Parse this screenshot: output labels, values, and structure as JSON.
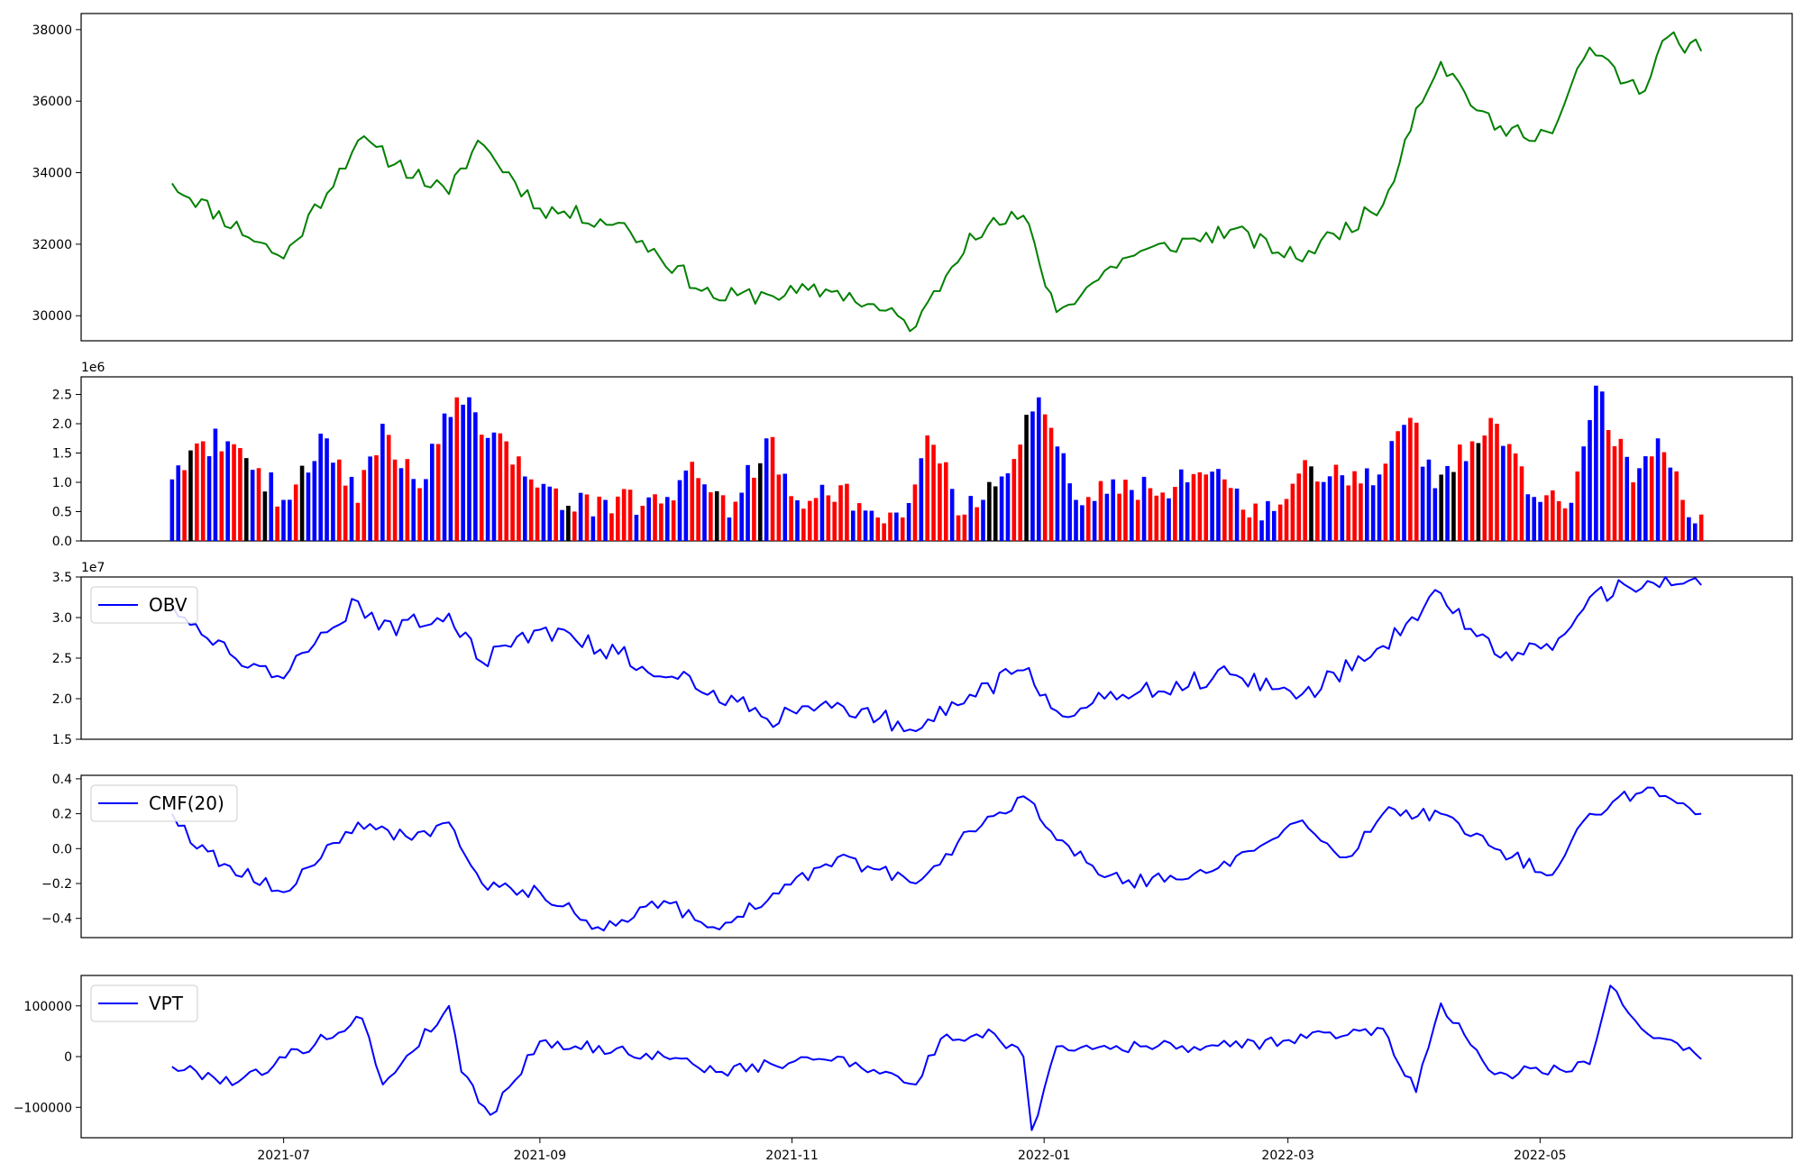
{
  "chart_data": [
    {
      "type": "line",
      "title": "",
      "xlabel": "",
      "ylabel": "",
      "color": "#008000",
      "ylim": [
        29300,
        38450
      ],
      "yticks": [
        30000,
        32000,
        34000,
        36000,
        38000
      ],
      "ytick_labels": [
        "30000",
        "32000",
        "34000",
        "36000",
        "38000"
      ],
      "x": [
        "2021-06-04",
        "2021-07-01",
        "2021-07-19",
        "2021-08-10",
        "2021-08-17",
        "2021-09-01",
        "2021-09-20",
        "2021-10-13",
        "2021-10-26",
        "2021-11-12",
        "2021-12-01",
        "2021-12-14",
        "2021-12-27",
        "2022-01-04",
        "2022-01-20",
        "2022-02-15",
        "2022-03-03",
        "2022-03-24",
        "2022-04-01",
        "2022-04-07",
        "2022-04-20",
        "2022-05-04",
        "2022-05-13",
        "2022-05-25",
        "2022-06-01",
        "2022-06-09"
      ],
      "values": [
        33700,
        31600,
        34900,
        33400,
        34900,
        33000,
        32600,
        30500,
        30600,
        30700,
        29700,
        32300,
        32800,
        30100,
        31600,
        32400,
        31600,
        33100,
        35800,
        37100,
        35200,
        35100,
        37500,
        36200,
        37800,
        37400
      ]
    },
    {
      "type": "bar",
      "title": "",
      "xlabel": "",
      "ylabel": "",
      "offset_text": "1e6",
      "ylim": [
        0,
        2.8
      ],
      "yticks": [
        0,
        0.5,
        1.0,
        1.5,
        2.0,
        2.5
      ],
      "ytick_labels": [
        "0.0",
        "0.5",
        "1.0",
        "1.5",
        "2.0",
        "2.5"
      ],
      "series_colors": {
        "up": "#0000ff",
        "down": "#ff0000",
        "flat": "#000000"
      },
      "x_start": "2021-06-04",
      "x_end": "2022-06-09",
      "count": 248,
      "anchors": [
        {
          "i": 0,
          "v": 1.05
        },
        {
          "i": 5,
          "v": 1.7
        },
        {
          "i": 10,
          "v": 1.65
        },
        {
          "i": 18,
          "v": 0.7
        },
        {
          "i": 25,
          "v": 1.75
        },
        {
          "i": 30,
          "v": 0.65
        },
        {
          "i": 34,
          "v": 2.0
        },
        {
          "i": 40,
          "v": 0.9
        },
        {
          "i": 46,
          "v": 2.45
        },
        {
          "i": 52,
          "v": 1.85
        },
        {
          "i": 58,
          "v": 1.05
        },
        {
          "i": 64,
          "v": 0.6
        },
        {
          "i": 70,
          "v": 0.7
        },
        {
          "i": 76,
          "v": 0.6
        },
        {
          "i": 80,
          "v": 0.75
        },
        {
          "i": 84,
          "v": 1.35
        },
        {
          "i": 90,
          "v": 0.4
        },
        {
          "i": 96,
          "v": 1.75
        },
        {
          "i": 102,
          "v": 0.55
        },
        {
          "i": 108,
          "v": 0.95
        },
        {
          "i": 114,
          "v": 0.4
        },
        {
          "i": 118,
          "v": 0.4
        },
        {
          "i": 122,
          "v": 1.8
        },
        {
          "i": 128,
          "v": 0.45
        },
        {
          "i": 134,
          "v": 1.1
        },
        {
          "i": 140,
          "v": 2.45
        },
        {
          "i": 146,
          "v": 0.7
        },
        {
          "i": 152,
          "v": 1.05
        },
        {
          "i": 158,
          "v": 0.9
        },
        {
          "i": 164,
          "v": 1.0
        },
        {
          "i": 170,
          "v": 1.05
        },
        {
          "i": 176,
          "v": 0.35
        },
        {
          "i": 182,
          "v": 1.15
        },
        {
          "i": 188,
          "v": 1.3
        },
        {
          "i": 194,
          "v": 0.95
        },
        {
          "i": 200,
          "v": 2.1
        },
        {
          "i": 204,
          "v": 0.9
        },
        {
          "i": 210,
          "v": 1.7
        },
        {
          "i": 214,
          "v": 2.0
        },
        {
          "i": 220,
          "v": 0.75
        },
        {
          "i": 226,
          "v": 0.65
        },
        {
          "i": 230,
          "v": 2.65
        },
        {
          "i": 236,
          "v": 1.0
        },
        {
          "i": 240,
          "v": 1.75
        },
        {
          "i": 244,
          "v": 0.7
        },
        {
          "i": 247,
          "v": 0.45
        }
      ]
    },
    {
      "type": "line",
      "title": "",
      "xlabel": "",
      "ylabel": "",
      "offset_text": "1e7",
      "color": "#0000ff",
      "ylim": [
        1.5,
        3.5
      ],
      "yticks": [
        1.5,
        2.0,
        2.5,
        3.0,
        3.5
      ],
      "ytick_labels": [
        "1.5",
        "2.0",
        "2.5",
        "3.0",
        "3.5"
      ],
      "legend": {
        "label": "OBV",
        "placement": "top-left"
      },
      "x": [
        "2021-06-04",
        "2021-06-07",
        "2021-06-18",
        "2021-07-01",
        "2021-07-19",
        "2021-07-24",
        "2021-08-10",
        "2021-08-18",
        "2021-09-01",
        "2021-09-20",
        "2021-10-13",
        "2021-10-26",
        "2021-11-12",
        "2021-12-01",
        "2021-12-14",
        "2021-12-27",
        "2022-01-04",
        "2022-01-20",
        "2022-02-15",
        "2022-03-03",
        "2022-03-24",
        "2022-04-07",
        "2022-04-20",
        "2022-05-04",
        "2022-05-13",
        "2022-05-27",
        "2022-06-09"
      ],
      "values": [
        3.15,
        3.0,
        2.55,
        2.25,
        3.2,
        2.85,
        3.05,
        2.45,
        2.85,
        2.55,
        2.1,
        1.75,
        1.95,
        1.6,
        2.05,
        2.35,
        1.85,
        2.05,
        2.3,
        2.0,
        2.65,
        3.3,
        2.55,
        2.6,
        3.25,
        3.45,
        3.4
      ]
    },
    {
      "type": "line",
      "title": "",
      "xlabel": "",
      "ylabel": "",
      "color": "#0000ff",
      "ylim": [
        -0.51,
        0.42
      ],
      "yticks": [
        -0.4,
        -0.2,
        0.0,
        0.2,
        0.4
      ],
      "ytick_labels": [
        "−0.4",
        "−0.2",
        "0.0",
        "0.2",
        "0.4"
      ],
      "legend": {
        "label": "CMF(20)",
        "placement": "top-left"
      },
      "x": [
        "2021-06-04",
        "2021-06-10",
        "2021-06-18",
        "2021-07-01",
        "2021-07-19",
        "2021-08-01",
        "2021-08-10",
        "2021-08-18",
        "2021-09-01",
        "2021-09-15",
        "2021-10-01",
        "2021-10-13",
        "2021-10-26",
        "2021-11-12",
        "2021-12-01",
        "2021-12-14",
        "2021-12-27",
        "2022-01-04",
        "2022-01-20",
        "2022-02-15",
        "2022-03-03",
        "2022-03-15",
        "2022-03-24",
        "2022-04-07",
        "2022-04-20",
        "2022-05-04",
        "2022-05-13",
        "2022-05-27",
        "2022-06-09"
      ],
      "values": [
        0.2,
        0.0,
        -0.1,
        -0.25,
        0.15,
        0.05,
        0.15,
        -0.2,
        -0.25,
        -0.45,
        -0.3,
        -0.45,
        -0.3,
        -0.05,
        -0.2,
        0.1,
        0.3,
        0.05,
        -0.2,
        -0.1,
        0.15,
        -0.05,
        0.2,
        0.2,
        0.0,
        -0.15,
        0.2,
        0.35,
        0.2
      ]
    },
    {
      "type": "line",
      "title": "",
      "xlabel": "",
      "ylabel": "",
      "color": "#0000ff",
      "ylim": [
        -160000,
        160000
      ],
      "yticks": [
        -100000,
        0,
        100000
      ],
      "ytick_labels": [
        "−100000",
        "0",
        "100000"
      ],
      "legend": {
        "label": "VPT",
        "placement": "top-left"
      },
      "xticks": [
        "2021-07-01",
        "2021-09-01",
        "2021-11-01",
        "2022-01-01",
        "2022-03-01",
        "2022-05-01"
      ],
      "xtick_labels": [
        "2021-07",
        "2021-09",
        "2021-11",
        "2022-01",
        "2022-03",
        "2022-05"
      ],
      "x": [
        "2021-06-04",
        "2021-06-20",
        "2021-07-20",
        "2021-07-25",
        "2021-08-10",
        "2021-08-13",
        "2021-08-20",
        "2021-09-01",
        "2021-10-01",
        "2021-10-15",
        "2021-11-12",
        "2021-12-01",
        "2021-12-07",
        "2021-12-20",
        "2021-12-27",
        "2021-12-29",
        "2022-01-04",
        "2022-02-15",
        "2022-03-24",
        "2022-04-01",
        "2022-04-07",
        "2022-04-20",
        "2022-05-13",
        "2022-05-18",
        "2022-05-27",
        "2022-06-09"
      ],
      "values": [
        -20000,
        -50000,
        75000,
        -55000,
        100000,
        -30000,
        -115000,
        30000,
        0,
        -30000,
        0,
        -55000,
        35000,
        45000,
        0,
        -145000,
        20000,
        20000,
        55000,
        -70000,
        105000,
        -35000,
        -15000,
        140000,
        45000,
        -5000
      ]
    }
  ]
}
